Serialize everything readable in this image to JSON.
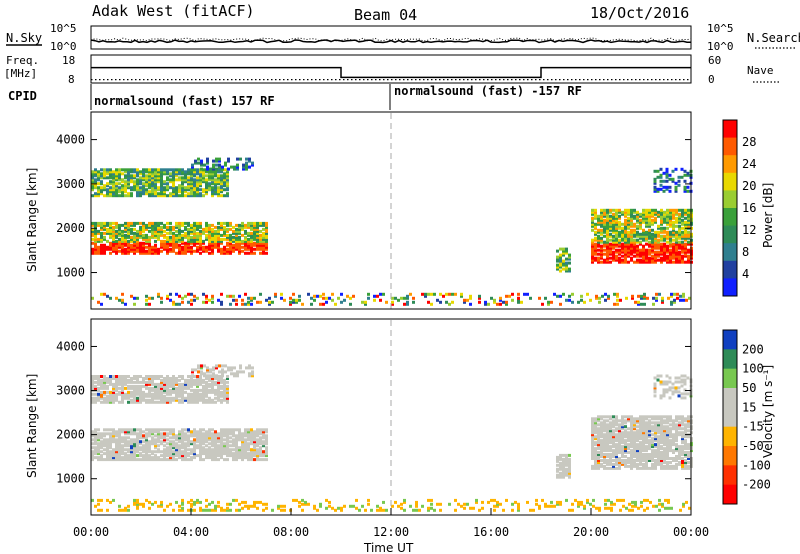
{
  "header": {
    "radar": "Adak West (fitACF)",
    "beam": "Beam 04",
    "date": "18/Oct/2016"
  },
  "chart_data": [
    {
      "type": "line",
      "name": "noise-panel",
      "left_label": "N.Sky",
      "right_label": "N.Search",
      "left_ticks": [
        "10^5",
        "10^0"
      ],
      "right_ticks": [
        "10^5",
        "10^0"
      ]
    },
    {
      "type": "line",
      "name": "freq-nave-panel",
      "left_label": "Freq.",
      "left_unit": "[MHz]",
      "right_label": "Nave",
      "left_ticks": [
        "18",
        "8"
      ],
      "right_ticks": [
        "60",
        "0"
      ],
      "freq_segments": [
        {
          "start_hour": 0,
          "end_hour": 10,
          "level": 0.55
        },
        {
          "start_hour": 10,
          "end_hour": 18,
          "level": 0.2
        },
        {
          "start_hour": 18,
          "end_hour": 24,
          "level": 0.55
        }
      ],
      "nave_level": 0.12
    },
    {
      "type": "table",
      "name": "cpid",
      "label": "CPID",
      "segments": [
        {
          "start_hour": 0,
          "text": "normalsound (fast) 157 RF"
        },
        {
          "start_hour": 12,
          "text": "normalsound (fast) -157 RF"
        }
      ]
    },
    {
      "type": "heatmap",
      "name": "power",
      "ylabel": "Slant Range [km]",
      "yticks": [
        1000,
        2000,
        3000,
        4000
      ],
      "ylim": [
        200,
        4600
      ],
      "colorbar_label": "Power [dB]",
      "colorbar_ticks": [
        "28",
        "24",
        "20",
        "16",
        "12",
        "8",
        "4"
      ],
      "colors": [
        "#ff0000",
        "#ff5a00",
        "#ff9a00",
        "#e8d800",
        "#9acd32",
        "#3aa03a",
        "#2e8b57",
        "#2f7f8f",
        "#2040a0",
        "#1020ff"
      ]
    },
    {
      "type": "heatmap",
      "name": "velocity",
      "ylabel": "Slant Range [km]",
      "yticks": [
        1000,
        2000,
        3000,
        4000
      ],
      "ylim": [
        200,
        4600
      ],
      "xlabel": "Time UT",
      "xticks": [
        "00:00",
        "04:00",
        "08:00",
        "12:00",
        "16:00",
        "20:00",
        "00:00"
      ],
      "xlim_hours": [
        0,
        24
      ],
      "colorbar_label": "Velocity [m s⁻¹]",
      "colorbar_ticks": [
        "200",
        "100",
        "50",
        "15",
        "-15",
        "-50",
        "-100",
        "-200"
      ],
      "colors": [
        "#1040c0",
        "#2e8b57",
        "#78c850",
        "#c8c8c0",
        "#c8c8c0",
        "#ffb400",
        "#ff7800",
        "#ff3000",
        "#ff0000"
      ]
    }
  ],
  "echoes": [
    {
      "t0": 0.0,
      "t1": 7.0,
      "r0": 1400,
      "r1": 2100,
      "class": "strong"
    },
    {
      "t0": 0.0,
      "t1": 5.5,
      "r0": 2700,
      "r1": 3300,
      "class": "medium"
    },
    {
      "t0": 4.0,
      "t1": 6.5,
      "r0": 3300,
      "r1": 3550,
      "class": "weak"
    },
    {
      "t0": 18.6,
      "t1": 19.2,
      "r0": 1000,
      "r1": 1500,
      "class": "medium"
    },
    {
      "t0": 20.0,
      "t1": 24.0,
      "r0": 1200,
      "r1": 2400,
      "class": "strong"
    },
    {
      "t0": 22.5,
      "t1": 24.0,
      "r0": 2800,
      "r1": 3300,
      "class": "weak"
    },
    {
      "t0": 0.0,
      "t1": 24.0,
      "r0": 250,
      "r1": 500,
      "class": "ground"
    }
  ]
}
